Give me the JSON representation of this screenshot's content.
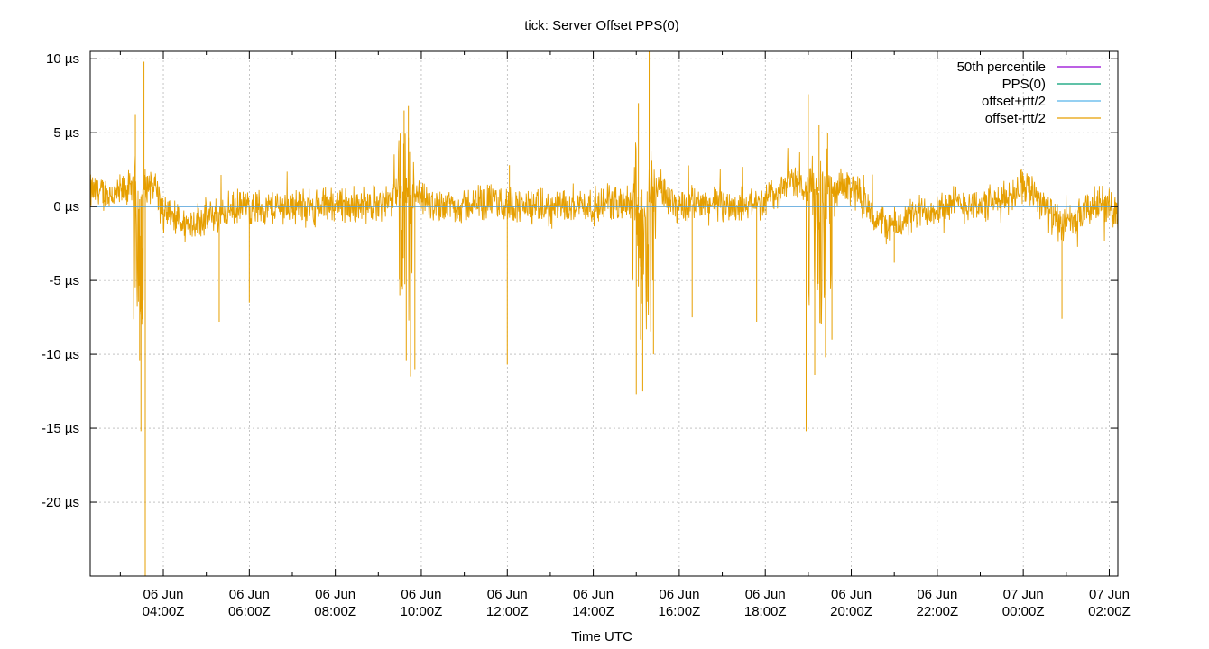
{
  "chart_data": {
    "type": "line",
    "title": "tick: Server Offset PPS(0)",
    "xlabel": "Time UTC",
    "ylabel": "",
    "x_range_hours": [
      2.3,
      26.2
    ],
    "ylim": [
      -25,
      10.5
    ],
    "y_unit": "µs",
    "y_ticks": [
      10,
      5,
      0,
      -5,
      -10,
      -15,
      -20
    ],
    "y_tick_labels": [
      "10 µs",
      "5 µs",
      "0 µs",
      "-5 µs",
      "-10 µs",
      "-15 µs",
      "-20 µs"
    ],
    "x_ticks": [
      {
        "value": 4,
        "date": "06 Jun",
        "time": "04:00Z"
      },
      {
        "value": 6,
        "date": "06 Jun",
        "time": "06:00Z"
      },
      {
        "value": 8,
        "date": "06 Jun",
        "time": "08:00Z"
      },
      {
        "value": 10,
        "date": "06 Jun",
        "time": "10:00Z"
      },
      {
        "value": 12,
        "date": "06 Jun",
        "time": "12:00Z"
      },
      {
        "value": 14,
        "date": "06 Jun",
        "time": "14:00Z"
      },
      {
        "value": 16,
        "date": "06 Jun",
        "time": "16:00Z"
      },
      {
        "value": 18,
        "date": "06 Jun",
        "time": "18:00Z"
      },
      {
        "value": 20,
        "date": "06 Jun",
        "time": "20:00Z"
      },
      {
        "value": 22,
        "date": "06 Jun",
        "time": "22:00Z"
      },
      {
        "value": 24,
        "date": "07 Jun",
        "time": "00:00Z"
      },
      {
        "value": 26,
        "date": "07 Jun",
        "time": "02:00Z"
      }
    ],
    "grid": true,
    "legend_position": "top-right",
    "series": [
      {
        "name": "50th percentile",
        "color": "#9400d3",
        "kind": "constant",
        "value": 0
      },
      {
        "name": "PPS(0)",
        "color": "#009e73",
        "kind": "constant",
        "value": 0
      },
      {
        "name": "offset+rtt/2",
        "color": "#56b4e9",
        "kind": "constant",
        "value": 0
      },
      {
        "name": "offset-rtt/2",
        "color": "#e69f00",
        "kind": "noisy",
        "x": [
          2.3,
          2.9,
          3.2,
          3.45,
          3.6,
          3.8,
          4.0,
          4.2,
          4.5,
          4.8,
          5.2,
          5.6,
          6.0,
          6.5,
          7.0,
          7.5,
          8.0,
          8.5,
          9.0,
          9.3,
          9.5,
          9.65,
          9.8,
          10.0,
          10.3,
          10.7,
          11.0,
          11.5,
          12.0,
          12.5,
          13.0,
          13.5,
          14.0,
          14.5,
          14.8,
          15.1,
          15.3,
          15.5,
          15.7,
          16.0,
          16.5,
          17.0,
          17.5,
          18.0,
          18.3,
          18.6,
          18.9,
          19.2,
          19.5,
          19.7,
          19.9,
          20.2,
          20.5,
          21.0,
          21.5,
          22.0,
          22.5,
          23.0,
          23.5,
          23.8,
          24.0,
          24.3,
          24.6,
          24.9,
          25.2,
          25.5,
          25.8,
          26.2
        ],
        "y": [
          1.0,
          0.8,
          1.2,
          0.5,
          1.5,
          1.6,
          -0.6,
          -0.8,
          -1.2,
          -0.9,
          -0.6,
          -0.2,
          0.0,
          -0.1,
          0.1,
          -0.1,
          0.2,
          0.1,
          0.2,
          0.4,
          1.4,
          0.6,
          0.9,
          0.3,
          0.1,
          0.2,
          0.0,
          0.4,
          0.2,
          0.0,
          -0.2,
          0.3,
          0.0,
          0.3,
          0.2,
          -0.3,
          0.3,
          1.5,
          0.6,
          0.1,
          0.2,
          0.1,
          0.0,
          0.5,
          1.0,
          1.8,
          1.5,
          1.1,
          0.8,
          1.0,
          1.6,
          0.8,
          -0.8,
          -1.4,
          -0.5,
          0.0,
          0.2,
          0.1,
          0.3,
          1.0,
          1.6,
          0.9,
          -0.4,
          -1.4,
          -1.0,
          -0.2,
          0.3,
          -0.4
        ],
        "spikes": [
          {
            "x": 3.35,
            "y": 6.2
          },
          {
            "x": 3.45,
            "y": -10.4
          },
          {
            "x": 3.48,
            "y": -15.2
          },
          {
            "x": 3.55,
            "y": 9.8
          },
          {
            "x": 3.58,
            "y": -25.0
          },
          {
            "x": 3.5,
            "y": -8.0
          },
          {
            "x": 5.3,
            "y": -7.8
          },
          {
            "x": 6.0,
            "y": -6.5
          },
          {
            "x": 9.5,
            "y": -6.0
          },
          {
            "x": 9.6,
            "y": 6.5
          },
          {
            "x": 9.65,
            "y": -10.4
          },
          {
            "x": 9.7,
            "y": 6.8
          },
          {
            "x": 9.75,
            "y": -11.5
          },
          {
            "x": 9.85,
            "y": -11.0
          },
          {
            "x": 12.0,
            "y": -10.7
          },
          {
            "x": 12.05,
            "y": 2.8
          },
          {
            "x": 15.0,
            "y": -12.7
          },
          {
            "x": 15.05,
            "y": 7.0
          },
          {
            "x": 15.15,
            "y": -12.5
          },
          {
            "x": 15.3,
            "y": 10.5
          },
          {
            "x": 15.4,
            "y": -10.0
          },
          {
            "x": 15.1,
            "y": -9.0
          },
          {
            "x": 16.3,
            "y": -7.5
          },
          {
            "x": 17.8,
            "y": -7.8
          },
          {
            "x": 18.95,
            "y": -15.2
          },
          {
            "x": 19.0,
            "y": 7.6
          },
          {
            "x": 19.15,
            "y": -11.4
          },
          {
            "x": 19.25,
            "y": 5.5
          },
          {
            "x": 19.4,
            "y": -10.2
          },
          {
            "x": 19.55,
            "y": -9.0
          },
          {
            "x": 19.45,
            "y": 5.0
          },
          {
            "x": 21.0,
            "y": -3.8
          },
          {
            "x": 24.9,
            "y": -7.6
          }
        ],
        "dense_bursts": [
          {
            "from": 3.3,
            "to": 3.55,
            "low": -8.0,
            "high": 3.5
          },
          {
            "from": 9.45,
            "to": 9.85,
            "low": -9.0,
            "high": 5.0
          },
          {
            "from": 14.9,
            "to": 15.45,
            "low": -8.5,
            "high": 5.0
          },
          {
            "from": 19.0,
            "to": 19.55,
            "low": -8.0,
            "high": 4.5
          }
        ],
        "noise_amplitude": 1.0
      }
    ]
  }
}
